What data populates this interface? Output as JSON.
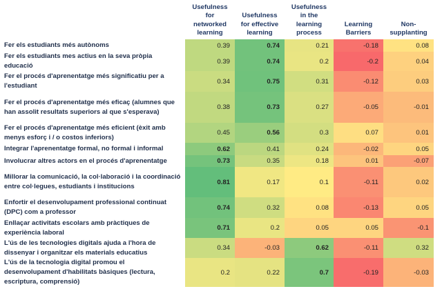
{
  "chart_data": {
    "type": "heatmap",
    "title": "",
    "columns": [
      "Usefulness for networked learning",
      "Usefulness for effective learning",
      "Usefulness in the learning process",
      "Learning Barriers",
      "Non-supplanting"
    ],
    "column_header_lines": [
      [
        "Usefulness",
        "for",
        "networked",
        "learning"
      ],
      [
        "Usefulness",
        "for effective",
        "learning"
      ],
      [
        "Usefulness",
        "in the",
        "learning",
        "process"
      ],
      [
        "Learning",
        "Barriers"
      ],
      [
        "Non-",
        "supplanting"
      ]
    ],
    "rows": [
      {
        "label": "Fer els estudiants més autònoms",
        "values": [
          0.39,
          0.74,
          0.21,
          -0.18,
          0.08
        ],
        "bold": [
          false,
          true,
          false,
          false,
          false
        ]
      },
      {
        "label": "Fer els estudiants mes actius en la seva pròpia educació",
        "values": [
          0.39,
          0.74,
          0.2,
          -0.2,
          0.04
        ],
        "bold": [
          false,
          true,
          false,
          false,
          false
        ]
      },
      {
        "label": "Fer el procés d'aprenentatge més significatiu per a l'estudiant",
        "values": [
          0.34,
          0.75,
          0.31,
          -0.12,
          0.03
        ],
        "bold": [
          false,
          true,
          false,
          false,
          false
        ]
      },
      {
        "label": "Fer el procés d'aprenentatge més eficaç (alumnes que han assolit resultats superiors al que s'esperava)",
        "values": [
          0.38,
          0.73,
          0.27,
          -0.05,
          -0.01
        ],
        "bold": [
          false,
          true,
          false,
          false,
          false
        ]
      },
      {
        "label": "Fer el procés d'aprenentatge més eficient (èxit amb menys esforç i / o costos inferiors)",
        "values": [
          0.45,
          0.56,
          0.3,
          0.07,
          0.01
        ],
        "bold": [
          false,
          true,
          false,
          false,
          false
        ]
      },
      {
        "label": "Integrar l'aprenentatge formal, no formal i informal",
        "values": [
          0.62,
          0.41,
          0.24,
          -0.02,
          0.05
        ],
        "bold": [
          true,
          false,
          false,
          false,
          false
        ]
      },
      {
        "label": "Involucrar altres actors en el procés d'aprenentatge",
        "values": [
          0.73,
          0.35,
          0.18,
          0.01,
          -0.07
        ],
        "bold": [
          true,
          false,
          false,
          false,
          false
        ]
      },
      {
        "label": "Millorar la comunicació, la col·laboració i la coordinació entre col·legues, estudiants i institucions",
        "values": [
          0.81,
          0.17,
          0.1,
          -0.11,
          0.02
        ],
        "bold": [
          true,
          false,
          false,
          false,
          false
        ]
      },
      {
        "label": "Enfortir el desenvolupament professional continuat (DPC) com a professor",
        "values": [
          0.74,
          0.32,
          0.08,
          -0.13,
          0.05
        ],
        "bold": [
          true,
          false,
          false,
          false,
          false
        ]
      },
      {
        "label": "Enllaçar activitats escolars amb pràctiques de experiència laboral",
        "values": [
          0.71,
          0.2,
          0.05,
          0.05,
          -0.1
        ],
        "bold": [
          true,
          false,
          false,
          false,
          false
        ]
      },
      {
        "label": "L'ús de les tecnologies digitals ajuda a l'hora de dissenyar i organitzar els materials educatius",
        "values": [
          0.34,
          -0.03,
          0.62,
          -0.11,
          0.32
        ],
        "bold": [
          false,
          false,
          true,
          false,
          false
        ]
      },
      {
        "label": "L'ús de la tecnologia digital promou el desenvolupament d'habilitats bàsiques (lectura, escriptura, comprensió)",
        "values": [
          0.2,
          0.22,
          0.7,
          -0.19,
          -0.03
        ],
        "bold": [
          false,
          false,
          true,
          false,
          false
        ]
      }
    ],
    "color_scale": {
      "min": {
        "value": -0.2,
        "color": "#F8696B"
      },
      "mid": {
        "value": 0.1,
        "color": "#FFEB84"
      },
      "max": {
        "value": 0.81,
        "color": "#63BE7B"
      }
    }
  }
}
